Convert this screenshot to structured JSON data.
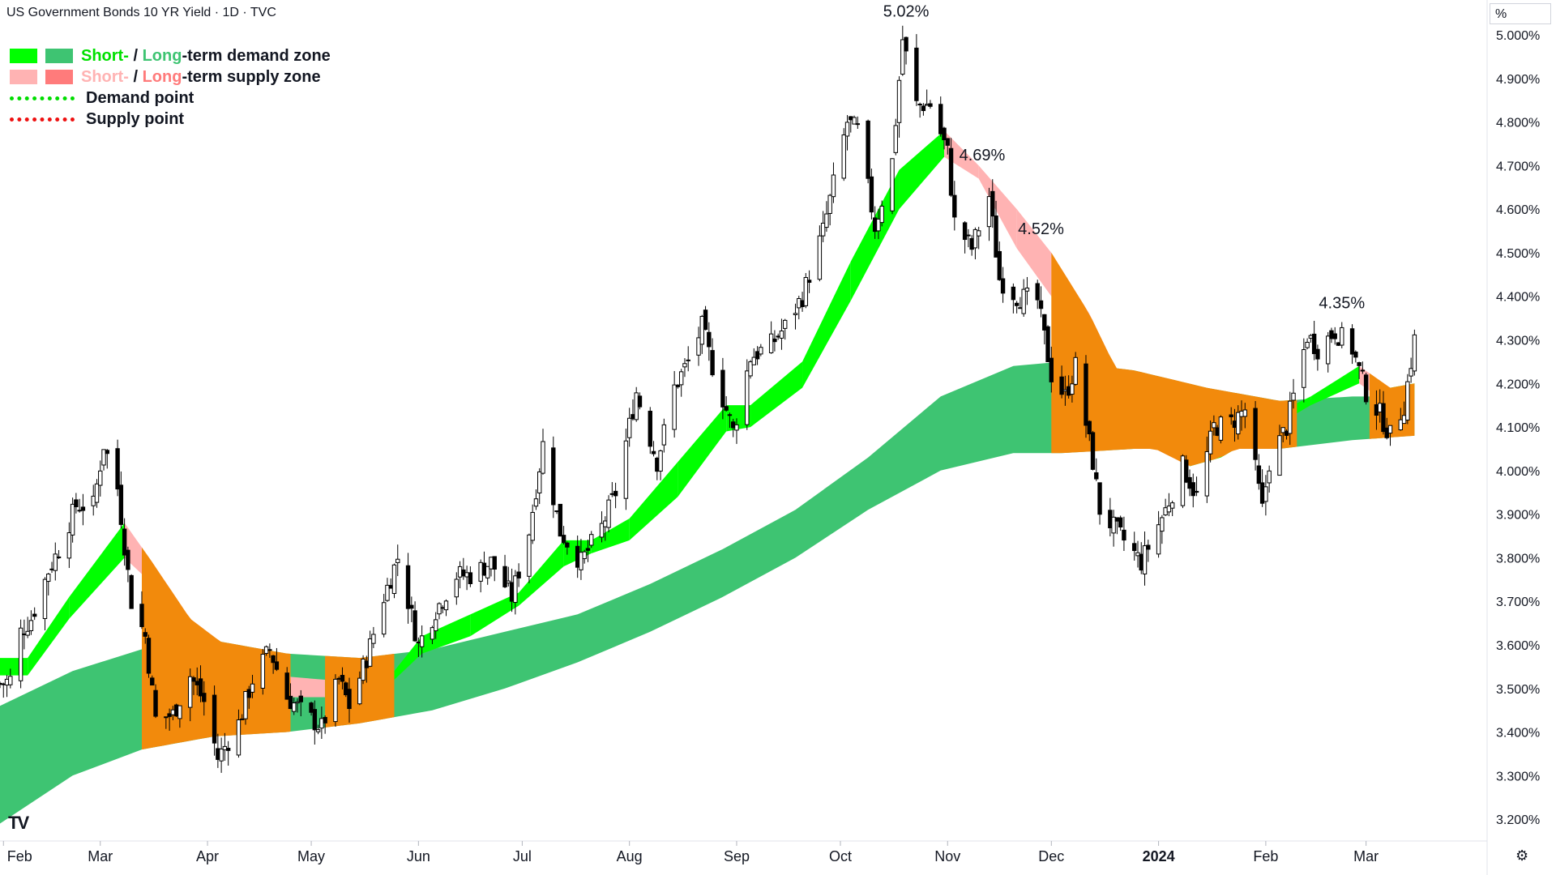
{
  "header": {
    "title": "US Government Bonds 10 YR Yield · 1D · TVC"
  },
  "legend": {
    "demand_short": "Short-",
    "demand_sep": " / ",
    "demand_long": "Long",
    "demand_rest": "-term demand zone",
    "supply_short": "Short-",
    "supply_sep": " / ",
    "supply_long": "Long",
    "supply_rest": "-term supply zone",
    "demand_point": "Demand point",
    "supply_point": "Supply point"
  },
  "colors": {
    "short_demand": "#00ff00",
    "long_demand": "#3ec472",
    "short_supply": "#ffb3b3",
    "long_supply": "#ff7b7b",
    "overlap": "#f28a0c",
    "demand_point": "#00dd00",
    "supply_point": "#ee1111",
    "candle_up": "#ffffff",
    "candle_down": "#000000"
  },
  "axis_unit": "%",
  "icons": {
    "settings": "gear-icon",
    "logo": "tradingview-logo"
  },
  "chart_data": {
    "type": "candlestick",
    "title": "US Government Bonds 10 YR Yield · 1D · TVC",
    "y_ticks": [
      "3.200%",
      "3.300%",
      "3.400%",
      "3.500%",
      "3.600%",
      "3.700%",
      "3.800%",
      "3.900%",
      "4.000%",
      "4.100%",
      "4.200%",
      "4.300%",
      "4.400%",
      "4.500%",
      "4.600%",
      "4.700%",
      "4.800%",
      "4.900%",
      "5.000%"
    ],
    "ylim": [
      3.15,
      5.08
    ],
    "x_ticks": [
      {
        "label": "Feb",
        "date": "2023-02-01"
      },
      {
        "label": "Mar",
        "date": "2023-03-01"
      },
      {
        "label": "Apr",
        "date": "2023-04-01"
      },
      {
        "label": "May",
        "date": "2023-05-01"
      },
      {
        "label": "Jun",
        "date": "2023-06-01"
      },
      {
        "label": "Jul",
        "date": "2023-07-01"
      },
      {
        "label": "Aug",
        "date": "2023-08-01"
      },
      {
        "label": "Sep",
        "date": "2023-09-01"
      },
      {
        "label": "Oct",
        "date": "2023-10-01"
      },
      {
        "label": "Nov",
        "date": "2023-11-01"
      },
      {
        "label": "Dec",
        "date": "2023-12-01"
      },
      {
        "label": "2024",
        "date": "2024-01-01"
      },
      {
        "label": "Feb",
        "date": "2024-02-01"
      },
      {
        "label": "Mar",
        "date": "2024-03-01"
      }
    ],
    "xlim": [
      "2023-01-31",
      "2024-04-05"
    ],
    "annotations": [
      {
        "text": "5.02%",
        "date": "2023-10-20",
        "value": 5.02
      },
      {
        "text": "4.69%",
        "date": "2023-11-11",
        "value": 4.69
      },
      {
        "text": "4.52%",
        "date": "2023-11-28",
        "value": 4.52
      },
      {
        "text": "4.35%",
        "date": "2024-02-23",
        "value": 4.35
      }
    ],
    "close_path": [
      [
        "2023-01-31",
        3.51
      ],
      [
        "2023-02-03",
        3.52
      ],
      [
        "2023-02-06",
        3.63
      ],
      [
        "2023-02-09",
        3.66
      ],
      [
        "2023-02-14",
        3.77
      ],
      [
        "2023-02-17",
        3.82
      ],
      [
        "2023-02-22",
        3.92
      ],
      [
        "2023-02-27",
        3.92
      ],
      [
        "2023-03-02",
        4.06
      ],
      [
        "2023-03-06",
        3.96
      ],
      [
        "2023-03-10",
        3.7
      ],
      [
        "2023-03-14",
        3.62
      ],
      [
        "2023-03-17",
        3.43
      ],
      [
        "2023-03-22",
        3.44
      ],
      [
        "2023-03-27",
        3.53
      ],
      [
        "2023-03-31",
        3.47
      ],
      [
        "2023-04-04",
        3.34
      ],
      [
        "2023-04-10",
        3.42
      ],
      [
        "2023-04-14",
        3.52
      ],
      [
        "2023-04-19",
        3.59
      ],
      [
        "2023-04-24",
        3.48
      ],
      [
        "2023-04-28",
        3.45
      ],
      [
        "2023-05-04",
        3.41
      ],
      [
        "2023-05-09",
        3.52
      ],
      [
        "2023-05-12",
        3.46
      ],
      [
        "2023-05-17",
        3.57
      ],
      [
        "2023-05-22",
        3.71
      ],
      [
        "2023-05-26",
        3.8
      ],
      [
        "2023-06-01",
        3.6
      ],
      [
        "2023-06-06",
        3.68
      ],
      [
        "2023-06-12",
        3.76
      ],
      [
        "2023-06-16",
        3.76
      ],
      [
        "2023-06-22",
        3.79
      ],
      [
        "2023-06-28",
        3.71
      ],
      [
        "2023-07-03",
        3.86
      ],
      [
        "2023-07-07",
        4.06
      ],
      [
        "2023-07-12",
        3.86
      ],
      [
        "2023-07-18",
        3.79
      ],
      [
        "2023-07-24",
        3.87
      ],
      [
        "2023-07-28",
        3.95
      ],
      [
        "2023-08-03",
        4.18
      ],
      [
        "2023-08-09",
        4.02
      ],
      [
        "2023-08-14",
        4.19
      ],
      [
        "2023-08-18",
        4.25
      ],
      [
        "2023-08-22",
        4.33
      ],
      [
        "2023-08-25",
        4.24
      ],
      [
        "2023-08-31",
        4.09
      ],
      [
        "2023-09-05",
        4.26
      ],
      [
        "2023-09-11",
        4.29
      ],
      [
        "2023-09-15",
        4.33
      ],
      [
        "2023-09-20",
        4.4
      ],
      [
        "2023-09-26",
        4.55
      ],
      [
        "2023-10-03",
        4.8
      ],
      [
        "2023-10-06",
        4.78
      ],
      [
        "2023-10-11",
        4.56
      ],
      [
        "2023-10-16",
        4.71
      ],
      [
        "2023-10-19",
        4.99
      ],
      [
        "2023-10-23",
        4.84
      ],
      [
        "2023-10-27",
        4.84
      ],
      [
        "2023-11-01",
        4.73
      ],
      [
        "2023-11-03",
        4.57
      ],
      [
        "2023-11-08",
        4.51
      ],
      [
        "2023-11-13",
        4.63
      ],
      [
        "2023-11-16",
        4.44
      ],
      [
        "2023-11-21",
        4.4
      ],
      [
        "2023-11-27",
        4.39
      ],
      [
        "2023-12-01",
        4.22
      ],
      [
        "2023-12-05",
        4.17
      ],
      [
        "2023-12-08",
        4.24
      ],
      [
        "2023-12-13",
        4.02
      ],
      [
        "2023-12-15",
        3.91
      ],
      [
        "2023-12-20",
        3.86
      ],
      [
        "2023-12-27",
        3.79
      ],
      [
        "2024-01-03",
        3.91
      ],
      [
        "2024-01-08",
        4.01
      ],
      [
        "2024-01-12",
        3.94
      ],
      [
        "2024-01-17",
        4.1
      ],
      [
        "2024-01-22",
        4.11
      ],
      [
        "2024-01-26",
        4.14
      ],
      [
        "2024-01-31",
        3.91
      ],
      [
        "2024-02-02",
        4.02
      ],
      [
        "2024-02-07",
        4.1
      ],
      [
        "2024-02-13",
        4.31
      ],
      [
        "2024-02-16",
        4.28
      ],
      [
        "2024-02-21",
        4.32
      ],
      [
        "2024-02-26",
        4.28
      ],
      [
        "2024-03-01",
        4.18
      ],
      [
        "2024-03-05",
        4.13
      ],
      [
        "2024-03-08",
        4.08
      ],
      [
        "2024-03-12",
        4.15
      ],
      [
        "2024-03-15",
        4.3
      ]
    ],
    "short_term_zone": [
      [
        "2023-01-31",
        3.57,
        3.53
      ],
      [
        "2023-02-08",
        3.57,
        3.53
      ],
      [
        "2023-02-20",
        3.71,
        3.66
      ],
      [
        "2023-03-08",
        3.88,
        3.8
      ],
      [
        "2023-03-16",
        3.79,
        3.74
      ],
      [
        "2023-03-27",
        3.66,
        3.61
      ],
      [
        "2023-04-06",
        3.6,
        3.55
      ],
      [
        "2023-04-20",
        3.53,
        3.48
      ],
      [
        "2023-05-05",
        3.52,
        3.48
      ],
      [
        "2023-05-19",
        3.52,
        3.5
      ],
      [
        "2023-05-25",
        3.54,
        3.52
      ],
      [
        "2023-06-02",
        3.62,
        3.58
      ],
      [
        "2023-06-16",
        3.67,
        3.62
      ],
      [
        "2023-06-30",
        3.72,
        3.69
      ],
      [
        "2023-07-13",
        3.84,
        3.78
      ],
      [
        "2023-07-21",
        3.84,
        3.81
      ],
      [
        "2023-08-01",
        3.89,
        3.84
      ],
      [
        "2023-08-15",
        4.02,
        3.94
      ],
      [
        "2023-08-29",
        4.15,
        4.09
      ],
      [
        "2023-09-05",
        4.15,
        4.1
      ],
      [
        "2023-09-20",
        4.25,
        4.19
      ],
      [
        "2023-10-04",
        4.48,
        4.39
      ],
      [
        "2023-10-18",
        4.69,
        4.6
      ],
      [
        "2023-10-31",
        4.78,
        4.72
      ],
      [
        "2023-11-10",
        4.7,
        4.67
      ],
      [
        "2023-11-21",
        4.6,
        4.51
      ],
      [
        "2023-12-01",
        4.5,
        4.4
      ],
      [
        "2023-12-12",
        4.36,
        4.29
      ],
      [
        "2023-12-26",
        4.13,
        4.07
      ],
      [
        "2024-01-10",
        4.04,
        4.01
      ],
      [
        "2024-01-19",
        4.07,
        4.03
      ],
      [
        "2024-02-01",
        4.12,
        4.09
      ],
      [
        "2024-02-14",
        4.17,
        4.15
      ],
      [
        "2024-02-28",
        4.24,
        4.2
      ],
      [
        "2024-03-08",
        4.19,
        4.15
      ],
      [
        "2024-03-15",
        4.2,
        4.17
      ]
    ],
    "long_term_zone": [
      [
        "2023-01-31",
        3.46,
        3.19
      ],
      [
        "2023-02-21",
        3.54,
        3.3
      ],
      [
        "2023-03-13",
        3.59,
        3.36
      ],
      [
        "2023-04-03",
        3.61,
        3.39
      ],
      [
        "2023-04-24",
        3.58,
        3.4
      ],
      [
        "2023-05-15",
        3.57,
        3.42
      ],
      [
        "2023-06-05",
        3.59,
        3.45
      ],
      [
        "2023-06-26",
        3.63,
        3.5
      ],
      [
        "2023-07-17",
        3.67,
        3.56
      ],
      [
        "2023-08-07",
        3.74,
        3.63
      ],
      [
        "2023-08-28",
        3.82,
        3.71
      ],
      [
        "2023-09-18",
        3.91,
        3.8
      ],
      [
        "2023-10-09",
        4.03,
        3.91
      ],
      [
        "2023-10-30",
        4.17,
        4.0
      ],
      [
        "2023-11-20",
        4.24,
        4.04
      ],
      [
        "2023-12-04",
        4.25,
        4.04
      ],
      [
        "2023-12-25",
        4.23,
        4.05
      ],
      [
        "2024-01-15",
        4.19,
        4.05
      ],
      [
        "2024-02-05",
        4.16,
        4.05
      ],
      [
        "2024-02-26",
        4.17,
        4.07
      ],
      [
        "2024-03-15",
        4.17,
        4.08
      ]
    ],
    "overlap_zones": [
      {
        "start": "2023-03-13",
        "end": "2023-04-25"
      },
      {
        "start": "2023-05-05",
        "end": "2023-05-25"
      },
      {
        "start": "2023-12-01",
        "end": "2024-02-10"
      },
      {
        "start": "2024-03-02",
        "end": "2024-03-15"
      }
    ],
    "grid": false,
    "legend_position": "top-left"
  }
}
